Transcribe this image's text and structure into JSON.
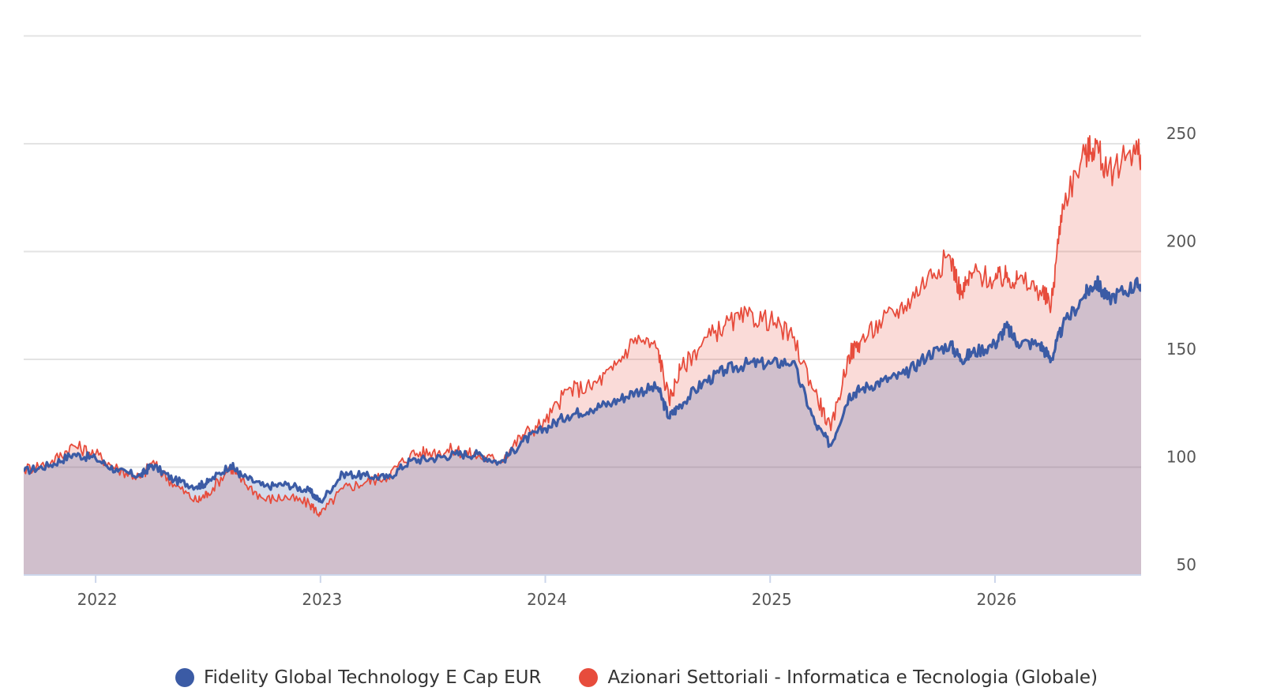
{
  "chart_data": {
    "type": "area",
    "title": "",
    "xlabel": "",
    "ylabel": "",
    "xlim": [
      2021.68,
      2026.65
    ],
    "ylim": [
      50,
      300
    ],
    "x_ticks": [
      2022,
      2023,
      2024,
      2025,
      2026
    ],
    "x_tick_labels": [
      "2022",
      "2023",
      "2024",
      "2025",
      "2026"
    ],
    "y_ticks": [
      50,
      100,
      150,
      200,
      250
    ],
    "y_tick_labels": [
      "50",
      "100",
      "150",
      "200",
      "250"
    ],
    "y_axis_position": "right",
    "grid": true,
    "legend_position": "bottom",
    "series": [
      {
        "name": "Fidelity Global Technology E Cap EUR",
        "color": "#3b5ba5",
        "x": [
          2021.68,
          2021.8,
          2021.9,
          2022.0,
          2022.1,
          2022.2,
          2022.25,
          2022.35,
          2022.45,
          2022.5,
          2022.6,
          2022.65,
          2022.75,
          2022.85,
          2022.95,
          2023.0,
          2023.1,
          2023.2,
          2023.3,
          2023.4,
          2023.5,
          2023.6,
          2023.7,
          2023.8,
          2023.9,
          2024.0,
          2024.1,
          2024.2,
          2024.3,
          2024.4,
          2024.5,
          2024.55,
          2024.6,
          2024.7,
          2024.8,
          2024.9,
          2025.0,
          2025.1,
          2025.2,
          2025.27,
          2025.35,
          2025.4,
          2025.5,
          2025.6,
          2025.7,
          2025.8,
          2025.85,
          2025.9,
          2026.0,
          2026.05,
          2026.1,
          2026.2,
          2026.25,
          2026.3,
          2026.4,
          2026.45,
          2026.5,
          2026.6,
          2026.65
        ],
        "values": [
          98,
          101,
          106,
          104,
          98,
          96,
          101,
          94,
          91,
          93,
          101,
          96,
          91,
          92,
          89,
          84,
          97,
          96,
          95,
          103,
          104,
          106,
          106,
          102,
          112,
          118,
          124,
          127,
          130,
          135,
          137,
          123,
          129,
          139,
          145,
          148,
          148,
          149,
          120,
          110,
          133,
          136,
          140,
          143,
          152,
          157,
          150,
          153,
          157,
          165,
          158,
          157,
          150,
          165,
          180,
          186,
          178,
          183,
          185
        ]
      },
      {
        "name": "Azionari Settoriali - Informatica e Tecnologia (Globale)",
        "color": "#e74c3c",
        "x": [
          2021.68,
          2021.8,
          2021.9,
          2022.0,
          2022.1,
          2022.2,
          2022.25,
          2022.35,
          2022.45,
          2022.5,
          2022.6,
          2022.65,
          2022.75,
          2022.85,
          2022.95,
          2023.0,
          2023.1,
          2023.2,
          2023.3,
          2023.4,
          2023.5,
          2023.6,
          2023.7,
          2023.8,
          2023.9,
          2024.0,
          2024.1,
          2024.2,
          2024.3,
          2024.4,
          2024.5,
          2024.55,
          2024.6,
          2024.7,
          2024.8,
          2024.9,
          2025.0,
          2025.1,
          2025.2,
          2025.27,
          2025.35,
          2025.4,
          2025.5,
          2025.6,
          2025.7,
          2025.8,
          2025.85,
          2025.9,
          2026.0,
          2026.05,
          2026.1,
          2026.2,
          2026.25,
          2026.3,
          2026.4,
          2026.45,
          2026.5,
          2026.6,
          2026.65
        ],
        "values": [
          99,
          102,
          110,
          106,
          99,
          95,
          102,
          92,
          84,
          88,
          100,
          94,
          85,
          86,
          83,
          78,
          90,
          93,
          96,
          106,
          107,
          108,
          105,
          103,
          115,
          121,
          136,
          137,
          145,
          160,
          155,
          131,
          145,
          158,
          166,
          170,
          168,
          160,
          135,
          117,
          152,
          158,
          168,
          175,
          188,
          198,
          180,
          190,
          187,
          188,
          187,
          182,
          175,
          222,
          245,
          250,
          235,
          247,
          245
        ]
      }
    ]
  },
  "legend": {
    "items": [
      {
        "label": "Fidelity Global Technology E Cap EUR",
        "color": "#3b5ba5"
      },
      {
        "label": "Azionari Settoriali - Informatica e Tecnologia (Globale)",
        "color": "#e74c3c"
      }
    ]
  }
}
